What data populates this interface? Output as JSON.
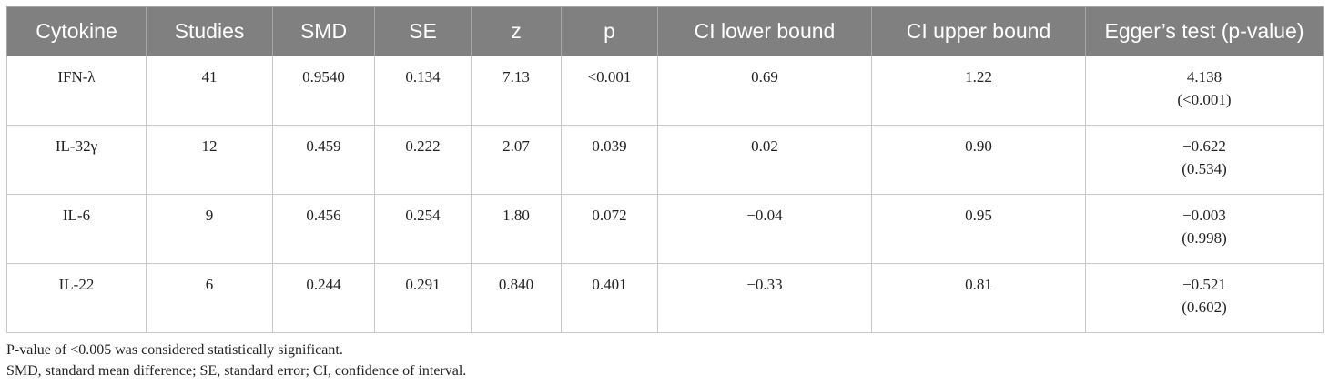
{
  "table": {
    "headers": [
      "Cytokine",
      "Studies",
      "SMD",
      "SE",
      "z",
      "p",
      "CI lower bound",
      "CI upper bound",
      "Egger’s test (p-value)"
    ],
    "rows": [
      {
        "cytokine": "IFN-λ",
        "studies": "41",
        "smd": "0.9540",
        "se": "0.134",
        "z": "7.13",
        "p": "<0.001",
        "ci_lower": "0.69",
        "ci_upper": "1.22",
        "egger_value": "4.138",
        "egger_p": "(<0.001)"
      },
      {
        "cytokine": "IL-32γ",
        "studies": "12",
        "smd": "0.459",
        "se": "0.222",
        "z": "2.07",
        "p": "0.039",
        "ci_lower": "0.02",
        "ci_upper": "0.90",
        "egger_value": "−0.622",
        "egger_p": "(0.534)"
      },
      {
        "cytokine": "IL-6",
        "studies": "9",
        "smd": "0.456",
        "se": "0.254",
        "z": "1.80",
        "p": "0.072",
        "ci_lower": "−0.04",
        "ci_upper": "0.95",
        "egger_value": "−0.003",
        "egger_p": "(0.998)"
      },
      {
        "cytokine": "IL-22",
        "studies": "6",
        "smd": "0.244",
        "se": "0.291",
        "z": "0.840",
        "p": "0.401",
        "ci_lower": "−0.33",
        "ci_upper": "0.81",
        "egger_value": "−0.521",
        "egger_p": "(0.602)"
      }
    ]
  },
  "notes": [
    "P-value of <0.005 was considered statistically significant.",
    "SMD, standard mean difference; SE, standard error; CI, confidence of interval."
  ],
  "colors": {
    "header_bg": "#808080",
    "header_text": "#ffffff",
    "border": "#c8c8c8"
  }
}
